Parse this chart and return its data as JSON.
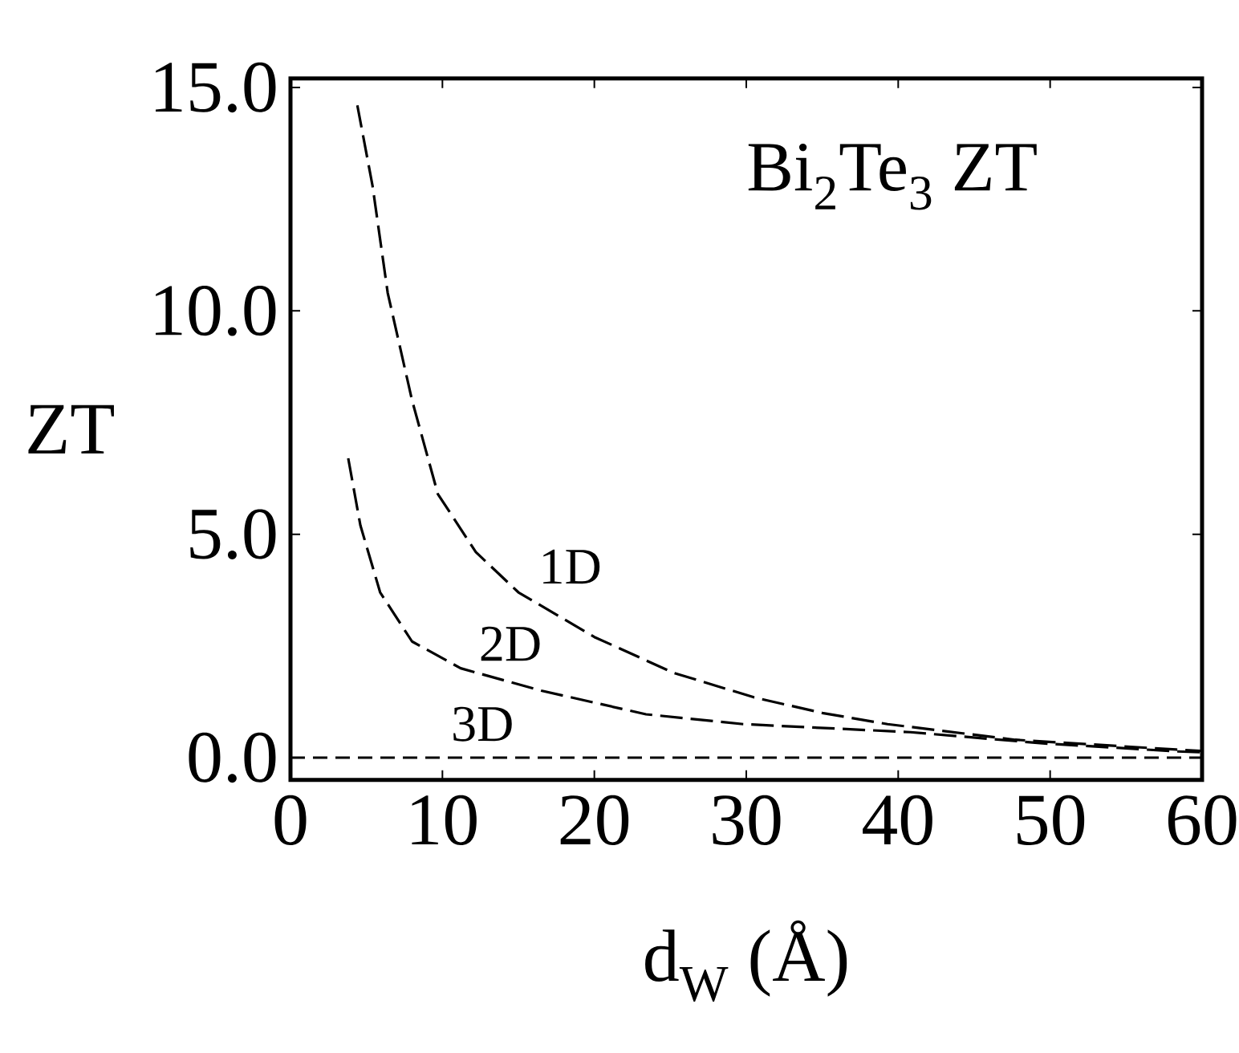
{
  "chart_data": {
    "type": "line",
    "title": "Bi$_{2}$Te$_{3}$ ZT",
    "xlabel": "d$_{W}$ (Å)",
    "ylabel": "ZT",
    "xlim": [
      0,
      60
    ],
    "ylim": [
      -0.5,
      15.2
    ],
    "xticks": [
      0,
      10,
      20,
      30,
      40,
      50,
      60
    ],
    "yticks": [
      {
        "value": 0,
        "label": "0.0"
      },
      {
        "value": 5,
        "label": "5.0"
      },
      {
        "value": 10,
        "label": "10.0"
      },
      {
        "value": 15,
        "label": "15.0"
      }
    ],
    "grid": false,
    "marker": "none",
    "series": [
      {
        "name": "1D",
        "color": "#000000",
        "line_style": "dashed",
        "x": [
          4.4,
          5.4,
          6.4,
          8.0,
          9.7,
          12.2,
          15.0,
          20.0,
          25.2,
          30.5,
          35.0,
          39.3,
          47.7,
          58.3,
          59.9
        ],
        "values": [
          14.6,
          12.8,
          10.4,
          8.0,
          5.9,
          4.6,
          3.7,
          2.7,
          1.9,
          1.35,
          1.0,
          0.75,
          0.4,
          0.18,
          0.15
        ]
      },
      {
        "name": "2D",
        "color": "#000000",
        "line_style": "dashed",
        "x": [
          3.8,
          4.6,
          5.9,
          8.0,
          11.2,
          16.5,
          23.4,
          29.8,
          40.8,
          49.5,
          58.3,
          59.9
        ],
        "values": [
          6.7,
          5.2,
          3.7,
          2.6,
          2.0,
          1.5,
          0.97,
          0.75,
          0.57,
          0.32,
          0.14,
          0.12
        ]
      },
      {
        "name": "3D",
        "color": "#000000",
        "line_style": "dotted",
        "x": [
          0,
          60
        ],
        "values": [
          0,
          0
        ]
      }
    ]
  }
}
